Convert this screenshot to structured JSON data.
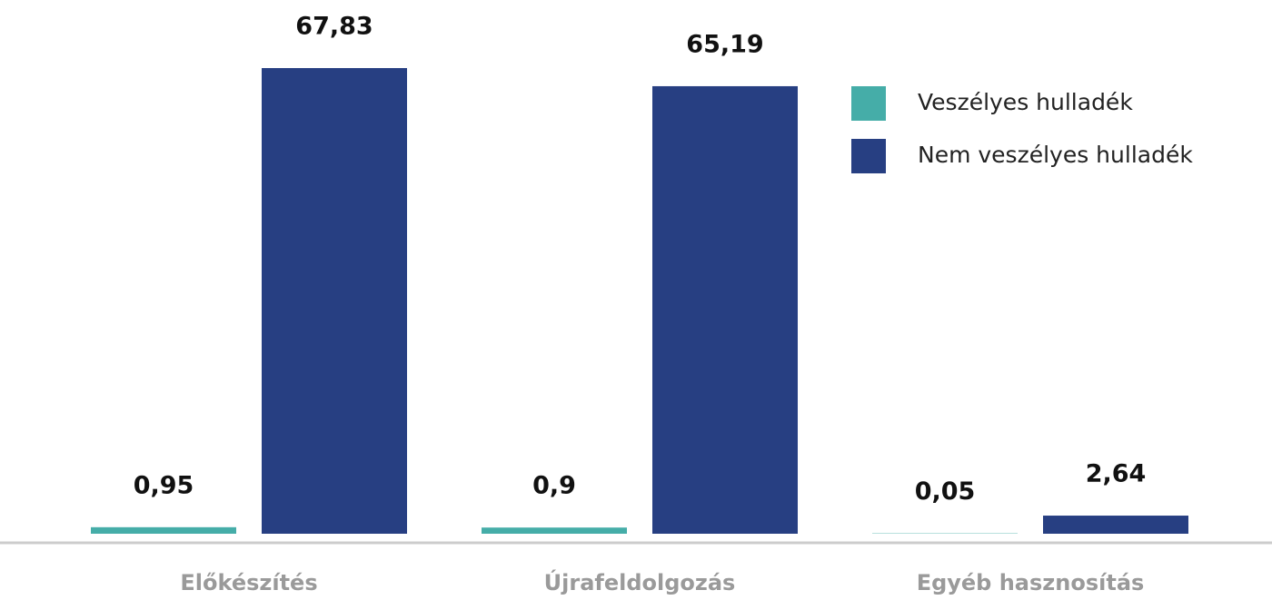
{
  "chart_data": {
    "type": "bar",
    "categories": [
      "Előkészítés",
      "Újrafeldolgozás",
      "Egyéb hasznosítás"
    ],
    "series": [
      {
        "name": "Veszélyes hulladék",
        "color": "#45ada8",
        "values": [
          0.95,
          0.9,
          0.05
        ],
        "value_labels": [
          "0,95",
          "0,9",
          "0,05"
        ]
      },
      {
        "name": "Nem veszélyes hulladék",
        "color": "#273f82",
        "values": [
          67.83,
          65.19,
          2.64
        ],
        "value_labels": [
          "67,83",
          "65,19",
          "2,64"
        ]
      }
    ],
    "legend": "upper right"
  }
}
